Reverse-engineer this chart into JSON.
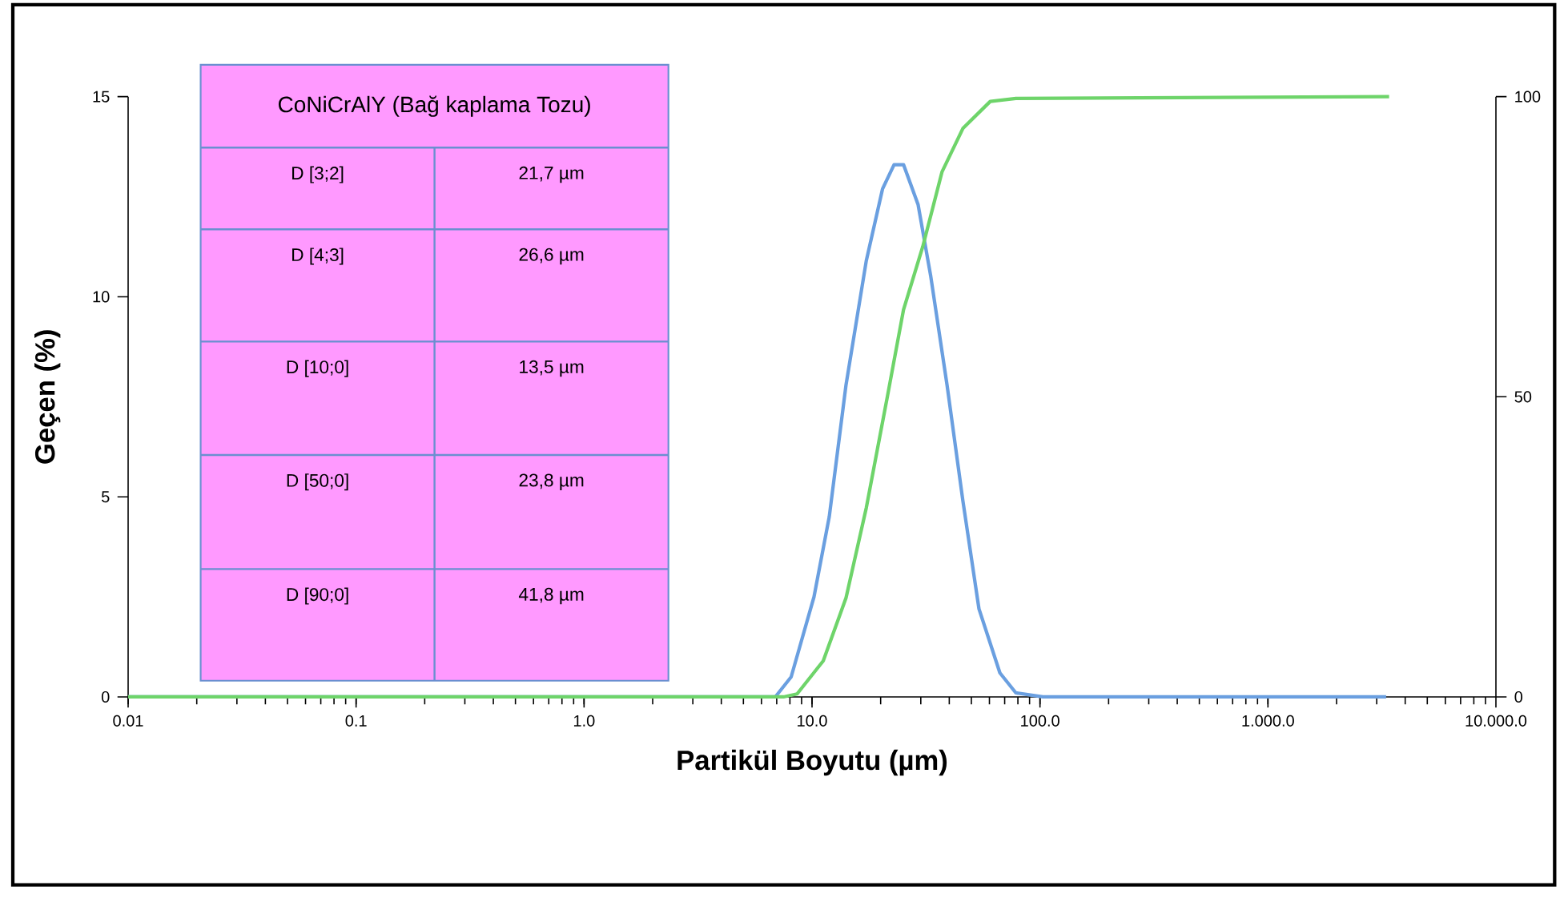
{
  "chart_data": {
    "type": "line",
    "xlabel": "Partikül Boyutu (µm)",
    "ylabel": "Geçen (%)",
    "log": "x",
    "xlim": [
      0.01,
      10000
    ],
    "xticks": [
      {
        "value": 0.01,
        "label": "0.01"
      },
      {
        "value": 0.1,
        "label": "0.1"
      },
      {
        "value": 1,
        "label": "1.0"
      },
      {
        "value": 10,
        "label": "10.0"
      },
      {
        "value": 100,
        "label": "100.0"
      },
      {
        "value": 1000,
        "label": "1.000.0"
      },
      {
        "value": 10000,
        "label": "10.000.0"
      }
    ],
    "ylim": [
      0,
      15
    ],
    "yticks": [
      0,
      5,
      10,
      15
    ],
    "y2lim": [
      0,
      100
    ],
    "y2ticks": [
      0,
      50,
      100
    ],
    "series": [
      {
        "color": "#6a9fe0",
        "x": [
          0.01,
          6.9,
          8.1,
          10.2,
          11.9,
          14.1,
          17.3,
          20.4,
          22.9,
          25.2,
          29.2,
          33.2,
          39.1,
          45.9,
          54.0,
          66.7,
          78.4,
          103,
          3300
        ],
        "values": [
          0,
          0,
          0.5,
          2.5,
          4.5,
          7.8,
          10.9,
          12.7,
          13.3,
          13.3,
          12.3,
          10.5,
          7.8,
          4.9,
          2.2,
          0.6,
          0.1,
          0,
          0
        ]
      },
      {
        "color": "#6ed46a",
        "axis": "y2",
        "x": [
          0.01,
          7.5,
          8.6,
          11.2,
          14.1,
          17.3,
          21.4,
          25.2,
          30.6,
          37.2,
          45.9,
          60.5,
          78.4,
          3400
        ],
        "values": [
          0,
          0,
          0.5,
          6,
          16.5,
          31.5,
          50,
          64.5,
          75,
          87.5,
          94.7,
          99.2,
          99.7,
          100
        ]
      }
    ],
    "annotations": [
      "CoNiCrAlY (Bağ kaplama Tozu)",
      "D [3;2]",
      "21,7 µm",
      "D [4;3]",
      "26,6 µm",
      "D [10;0]",
      "13,5 µm",
      "D [50;0]",
      "23,8 µm",
      "D [90;0]",
      "41,8 µm"
    ]
  }
}
